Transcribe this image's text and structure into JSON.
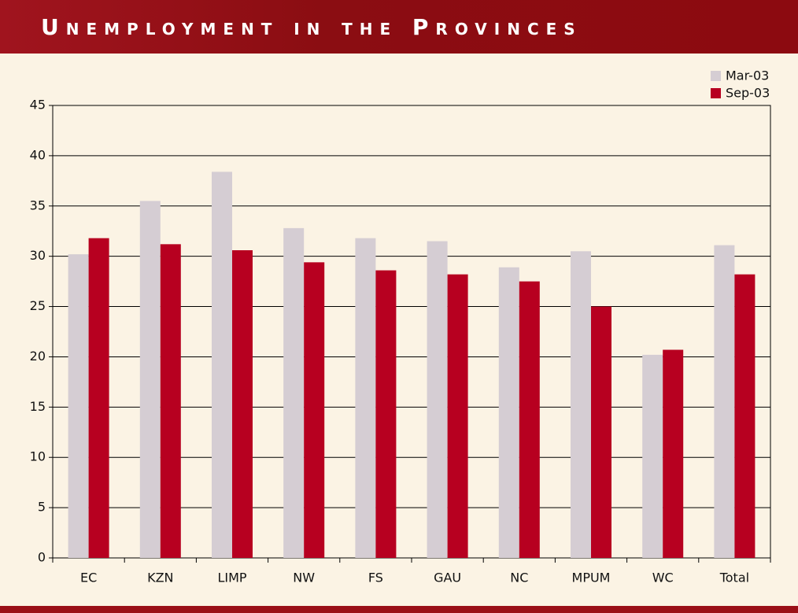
{
  "chart_data": {
    "type": "bar",
    "title": "Unemployment in the Provinces",
    "categories": [
      "EC",
      "KZN",
      "LIMP",
      "NW",
      "FS",
      "GAU",
      "NC",
      "MPUM",
      "WC",
      "Total"
    ],
    "series": [
      {
        "name": "Mar-03",
        "color": "#d5cdd3",
        "values": [
          30.2,
          35.5,
          38.4,
          32.8,
          31.8,
          31.5,
          28.9,
          30.5,
          20.2,
          31.1
        ]
      },
      {
        "name": "Sep-03",
        "color": "#b70020",
        "values": [
          31.8,
          31.2,
          30.6,
          29.4,
          28.6,
          28.2,
          27.5,
          25.0,
          20.7,
          28.2
        ]
      }
    ],
    "ylim": [
      0,
      45
    ],
    "yticks": [
      0,
      5,
      10,
      15,
      20,
      25,
      30,
      35,
      40,
      45
    ],
    "grid": true,
    "legend": "top-right"
  }
}
